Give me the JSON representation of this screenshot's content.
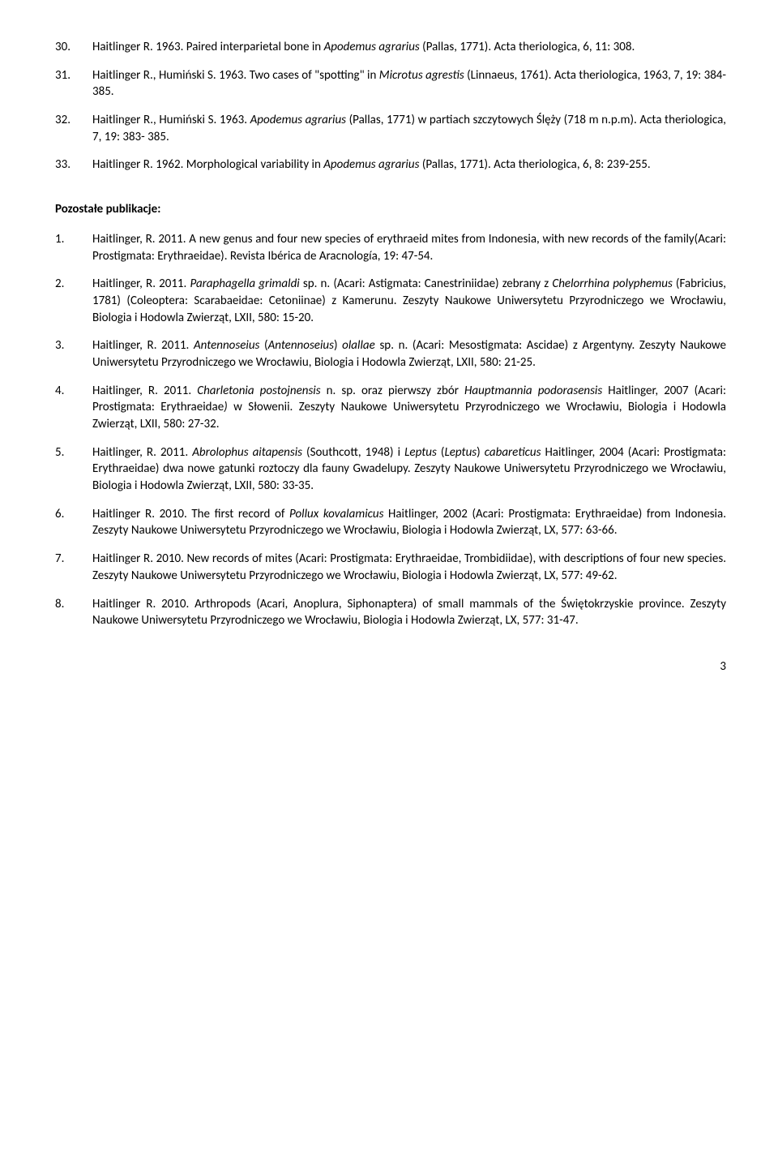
{
  "topEntries": [
    {
      "num": "30.",
      "segments": [
        {
          "t": "Haitlinger R. 1963. Paired interparietal bone in "
        },
        {
          "t": "Apodemus agrarius",
          "i": true
        },
        {
          "t": " (Pallas, 1771). Acta theriologica, 6, 11: 308."
        }
      ]
    },
    {
      "num": "31.",
      "segments": [
        {
          "t": "Haitlinger R., Humiński S. 1963. Two cases of \"spotting\" in "
        },
        {
          "t": "Microtus agrestis",
          "i": true
        },
        {
          "t": " (Linnaeus, 1761). Acta theriologica, 1963, 7, 19: 384-385."
        }
      ]
    },
    {
      "num": "32.",
      "segments": [
        {
          "t": "Haitlinger R., Humiński S. 1963. "
        },
        {
          "t": "Apodemus agrarius",
          "i": true
        },
        {
          "t": " (Pallas, 1771) w partiach szczytowych Ślęży (718 m n.p.m). Acta theriologica, 7, 19: 383- 385."
        }
      ]
    },
    {
      "num": "33.",
      "segments": [
        {
          "t": "Haitlinger R. 1962. Morphological variability in "
        },
        {
          "t": "Apodemus agrarius",
          "i": true
        },
        {
          "t": " (Pallas, 1771). Acta theriologica, 6, 8: 239-255."
        }
      ]
    }
  ],
  "sectionHeading": "Pozostałe publikacje:",
  "pubs": [
    {
      "num": "1.",
      "segments": [
        {
          "t": "Haitlinger, R. 2011. A new genus and four new species of erythraeid mites from Indonesia, with new records of the family(Acari: Prostigmata: Erythraeidae). Revista Ibérica de Aracnología, 19: 47-54."
        }
      ]
    },
    {
      "num": "2.",
      "segments": [
        {
          "t": "Haitlinger, R. 2011. "
        },
        {
          "t": "Paraphagella grimaldi",
          "i": true
        },
        {
          "t": " sp. n. (Acari: Astigmata: Canestriniidae) zebrany z "
        },
        {
          "t": "Chelorrhina polyphemus",
          "i": true
        },
        {
          "t": " (Fabricius, 1781) (Coleoptera: Scarabaeidae: Cetoniinae) z Kamerunu. Zeszyty Naukowe Uniwersytetu Przyrodniczego we Wrocławiu, Biologia i Hodowla Zwierząt, LXII, 580: 15-20."
        }
      ]
    },
    {
      "num": "3.",
      "segments": [
        {
          "t": "Haitlinger, R. 2011. "
        },
        {
          "t": "Antennoseius",
          "i": true
        },
        {
          "t": " ("
        },
        {
          "t": "Antennoseius",
          "i": true
        },
        {
          "t": ") "
        },
        {
          "t": "olallae",
          "i": true
        },
        {
          "t": " sp. n. (Acari: Mesostigmata: Ascidae) z Argentyny. Zeszyty Naukowe Uniwersytetu Przyrodniczego we Wrocławiu, Biologia i Hodowla Zwierząt, LXII, 580: 21-25."
        }
      ]
    },
    {
      "num": "4.",
      "segments": [
        {
          "t": "Haitlinger, R. 2011. "
        },
        {
          "t": "Charletonia postojnensis",
          "i": true
        },
        {
          "t": " n. sp. oraz pierwszy zbór "
        },
        {
          "t": "Hauptmannia podorasensis",
          "i": true
        },
        {
          "t": " Haitlinger, 2007 (Acari: Prostigmata: Erythraeidae"
        },
        {
          "t": ")",
          "i": true
        },
        {
          "t": " w Słowenii. Zeszyty Naukowe Uniwersytetu Przyrodniczego we Wrocławiu, Biologia i Hodowla Zwierząt, LXII, 580: 27-32."
        }
      ]
    },
    {
      "num": "5.",
      "segments": [
        {
          "t": "Haitlinger, R. 2011. "
        },
        {
          "t": "Abrolophus aitapensis",
          "i": true
        },
        {
          "t": " (Southcott, 1948) i "
        },
        {
          "t": "Leptus",
          "i": true
        },
        {
          "t": " ("
        },
        {
          "t": "Leptus",
          "i": true
        },
        {
          "t": ") "
        },
        {
          "t": "cabareticus",
          "i": true
        },
        {
          "t": " Haitlinger, 2004 (Acari: Prostigmata: Erythraeidae) dwa nowe gatunki roztoczy dla fauny Gwadelupy. Zeszyty Naukowe Uniwersytetu Przyrodniczego we Wrocławiu, Biologia i Hodowla Zwierząt, LXII, 580: 33-35."
        }
      ]
    },
    {
      "num": "6.",
      "segments": [
        {
          "t": "Haitlinger R. 2010. The first record of "
        },
        {
          "t": "Pollux kovalamicus",
          "i": true
        },
        {
          "t": " Haitlinger, 2002 (Acari: Prostigmata: Erythraeidae) from Indonesia. Zeszyty Naukowe Uniwersytetu Przyrodniczego we Wrocławiu, Biologia i Hodowla Zwierząt, LX, 577: 63-66."
        }
      ]
    },
    {
      "num": "7.",
      "segments": [
        {
          "t": "Haitlinger R. 2010. New records of mites (Acari: Prostigmata: Erythraeidae, Trombidiidae), with descriptions of four new species. Zeszyty Naukowe Uniwersytetu Przyrodniczego we Wrocławiu, Biologia i Hodowla Zwierząt, LX, 577: 49-62."
        }
      ]
    },
    {
      "num": "8.",
      "segments": [
        {
          "t": "Haitlinger R. 2010. Arthropods (Acari, Anoplura, Siphonaptera) of small mammals of the Świętokrzyskie province. Zeszyty Naukowe Uniwersytetu Przyrodniczego we Wrocławiu, Biologia i Hodowla Zwierząt, LX, 577: 31-47."
        }
      ]
    }
  ],
  "pageNumber": "3"
}
